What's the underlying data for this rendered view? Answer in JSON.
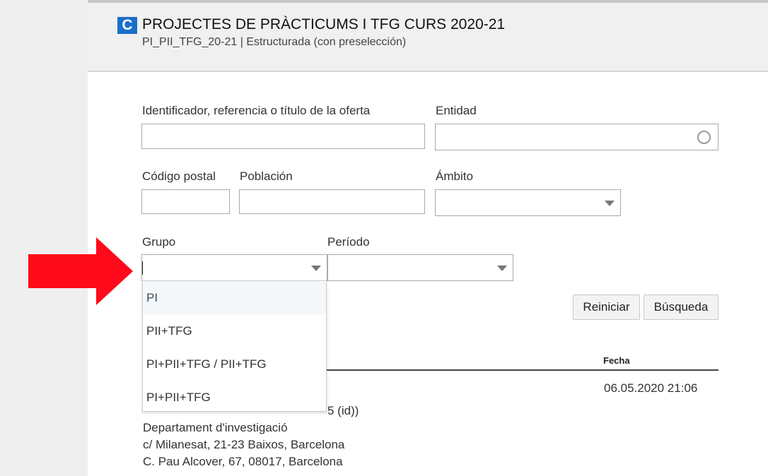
{
  "header": {
    "logo_letter": "C",
    "title": "PROJECTES DE PRÀCTICUMS I TFG CURS 2020-21",
    "subtitle": "PI_PII_TFG_20-21 | Estructurada (con preselección)"
  },
  "form": {
    "identificador_label": "Identificador, referencia o título de la oferta",
    "identificador_value": "",
    "entidad_label": "Entidad",
    "entidad_value": "",
    "codigo_postal_label": "Código postal",
    "codigo_postal_value": "",
    "poblacion_label": "Población",
    "poblacion_value": "",
    "ambito_label": "Ámbito",
    "ambito_value": "",
    "grupo_label": "Grupo",
    "grupo_value": "",
    "periodo_label": "Período",
    "periodo_value": ""
  },
  "grupo_options": [
    "PI",
    "PII+TFG",
    "PI+PII+TFG / PII+TFG",
    "PI+PII+TFG"
  ],
  "buttons": {
    "reset": "Reiniciar",
    "search": "Búsqueda"
  },
  "results": {
    "date_header": "Fecha",
    "date": "06.05.2020 21:06",
    "line1_visible": "5 (id))",
    "line2": "Departament d'investigació",
    "line3": "c/ Milanesat, 21-23 Baixos, Barcelona",
    "line4": "C. Pau Alcover, 67, 08017, Barcelona"
  },
  "colors": {
    "accent": "#1a6fc9",
    "arrow": "#ff0a1a",
    "highlight": "#f4f8fb"
  }
}
